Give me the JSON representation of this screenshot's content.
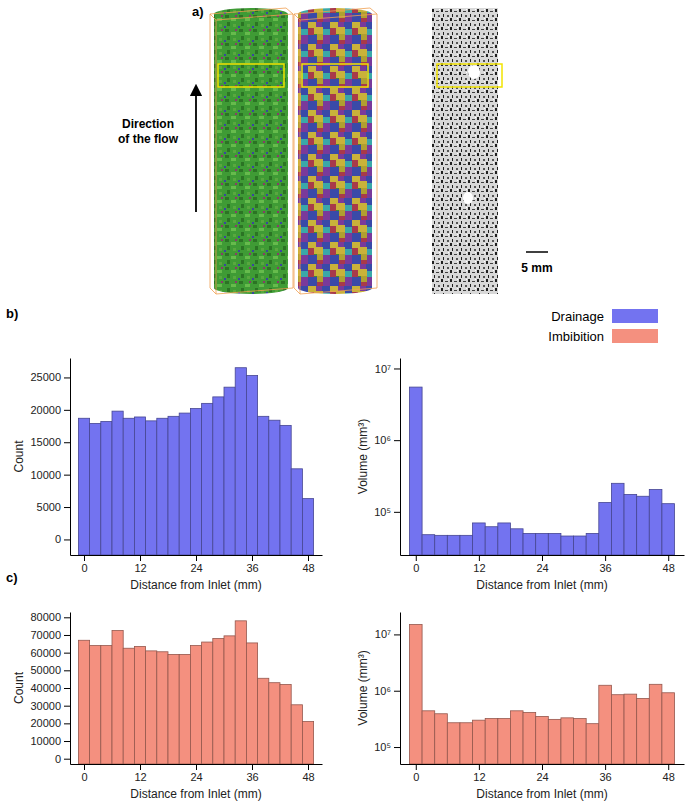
{
  "panel_a": {
    "label": "a)",
    "annotation": "Direction of the flow",
    "scale_bar": "5 mm"
  },
  "panel_labels": [
    "b)",
    "c)"
  ],
  "legend_entries": [
    {
      "name": "Drainage",
      "color": "#7373f0"
    },
    {
      "name": "Imbibition",
      "color": "#f4907f"
    }
  ],
  "chart_data": [
    {
      "type": "histogram",
      "x_label": "Distance from Inlet (mm)",
      "y_label": "Count",
      "color": "#7373f0",
      "bins": [
        -1.2,
        1.2,
        3.6,
        6.0,
        8.4,
        10.8,
        13.2,
        15.6,
        18.0,
        20.4,
        22.8,
        25.2,
        27.6,
        30.0,
        32.4,
        34.8,
        37.2,
        39.6,
        42.0,
        44.4,
        46.8,
        49.2
      ],
      "values": [
        18700,
        17900,
        18200,
        19800,
        18700,
        18900,
        18300,
        18700,
        19000,
        19500,
        20200,
        21000,
        22000,
        23500,
        26500,
        25300,
        19000,
        18400,
        17600,
        10900,
        6300
      ],
      "xlim": [
        -3,
        51
      ],
      "xticks": [
        0,
        12,
        24,
        36,
        48
      ],
      "ylim": [
        -2400,
        28000
      ],
      "yticks": [
        0,
        5000,
        10000,
        15000,
        20000,
        25000
      ]
    },
    {
      "type": "histogram",
      "x_label": "Distance from Inlet (mm)",
      "y_label": "Volume (mm³)",
      "color": "#7373f0",
      "log": "y",
      "bins": [
        -1.2,
        1.2,
        3.6,
        6.0,
        8.4,
        10.8,
        13.2,
        15.6,
        18.0,
        20.4,
        22.8,
        25.2,
        27.6,
        30.0,
        32.4,
        34.8,
        37.2,
        39.6,
        42.0,
        44.4,
        46.8,
        49.2
      ],
      "values": [
        5500000,
        48000,
        47000,
        47000,
        47000,
        70000,
        62000,
        70000,
        58000,
        50000,
        50000,
        50000,
        46000,
        46000,
        50000,
        135000,
        250000,
        175000,
        165000,
        205000,
        130000
      ],
      "xlim": [
        -3,
        51
      ],
      "xticks": [
        0,
        12,
        24,
        36,
        48
      ],
      "ylim": [
        25000,
        14000000
      ],
      "yticks": [
        {
          "value": 100000,
          "label": "10⁵"
        },
        {
          "value": 1000000,
          "label": "10⁶"
        },
        {
          "value": 10000000,
          "label": "10⁷"
        }
      ]
    },
    {
      "type": "histogram",
      "x_label": "Distance from Inlet (mm)",
      "y_label": "Count",
      "color": "#f4907f",
      "bins": [
        -1.2,
        1.2,
        3.6,
        6.0,
        8.4,
        10.8,
        13.2,
        15.6,
        18.0,
        20.4,
        22.8,
        25.2,
        27.6,
        30.0,
        32.4,
        34.8,
        37.2,
        39.6,
        42.0,
        44.4,
        46.8,
        49.2
      ],
      "values": [
        67000,
        64000,
        64000,
        72500,
        62500,
        63500,
        61000,
        60500,
        59000,
        59000,
        64000,
        66000,
        68000,
        69500,
        78000,
        65500,
        45500,
        43000,
        42000,
        30500,
        21000
      ],
      "xlim": [
        -3,
        51
      ],
      "xticks": [
        0,
        12,
        24,
        36,
        48
      ],
      "ylim": [
        -3000,
        83000
      ],
      "yticks": [
        0,
        10000,
        20000,
        30000,
        40000,
        50000,
        60000,
        70000,
        80000
      ]
    },
    {
      "type": "histogram",
      "x_label": "Distance from Inlet (mm)",
      "y_label": "Volume (mm³)",
      "color": "#f4907f",
      "log": "y",
      "bins": [
        -1.2,
        1.2,
        3.6,
        6.0,
        8.4,
        10.8,
        13.2,
        15.6,
        18.0,
        20.4,
        22.8,
        25.2,
        27.6,
        30.0,
        32.4,
        34.8,
        37.2,
        39.6,
        42.0,
        44.4,
        46.8,
        49.2
      ],
      "values": [
        15000000,
        440000,
        390000,
        270000,
        270000,
        300000,
        320000,
        320000,
        440000,
        410000,
        350000,
        310000,
        330000,
        320000,
        260000,
        1250000,
        850000,
        870000,
        730000,
        1300000,
        920000
      ],
      "xlim": [
        -3,
        51
      ],
      "xticks": [
        0,
        12,
        24,
        36,
        48
      ],
      "ylim": [
        50000,
        25000000
      ],
      "yticks": [
        {
          "value": 100000,
          "label": "10⁵"
        },
        {
          "value": 1000000,
          "label": "10⁶"
        },
        {
          "value": 10000000,
          "label": "10⁷"
        }
      ]
    }
  ]
}
